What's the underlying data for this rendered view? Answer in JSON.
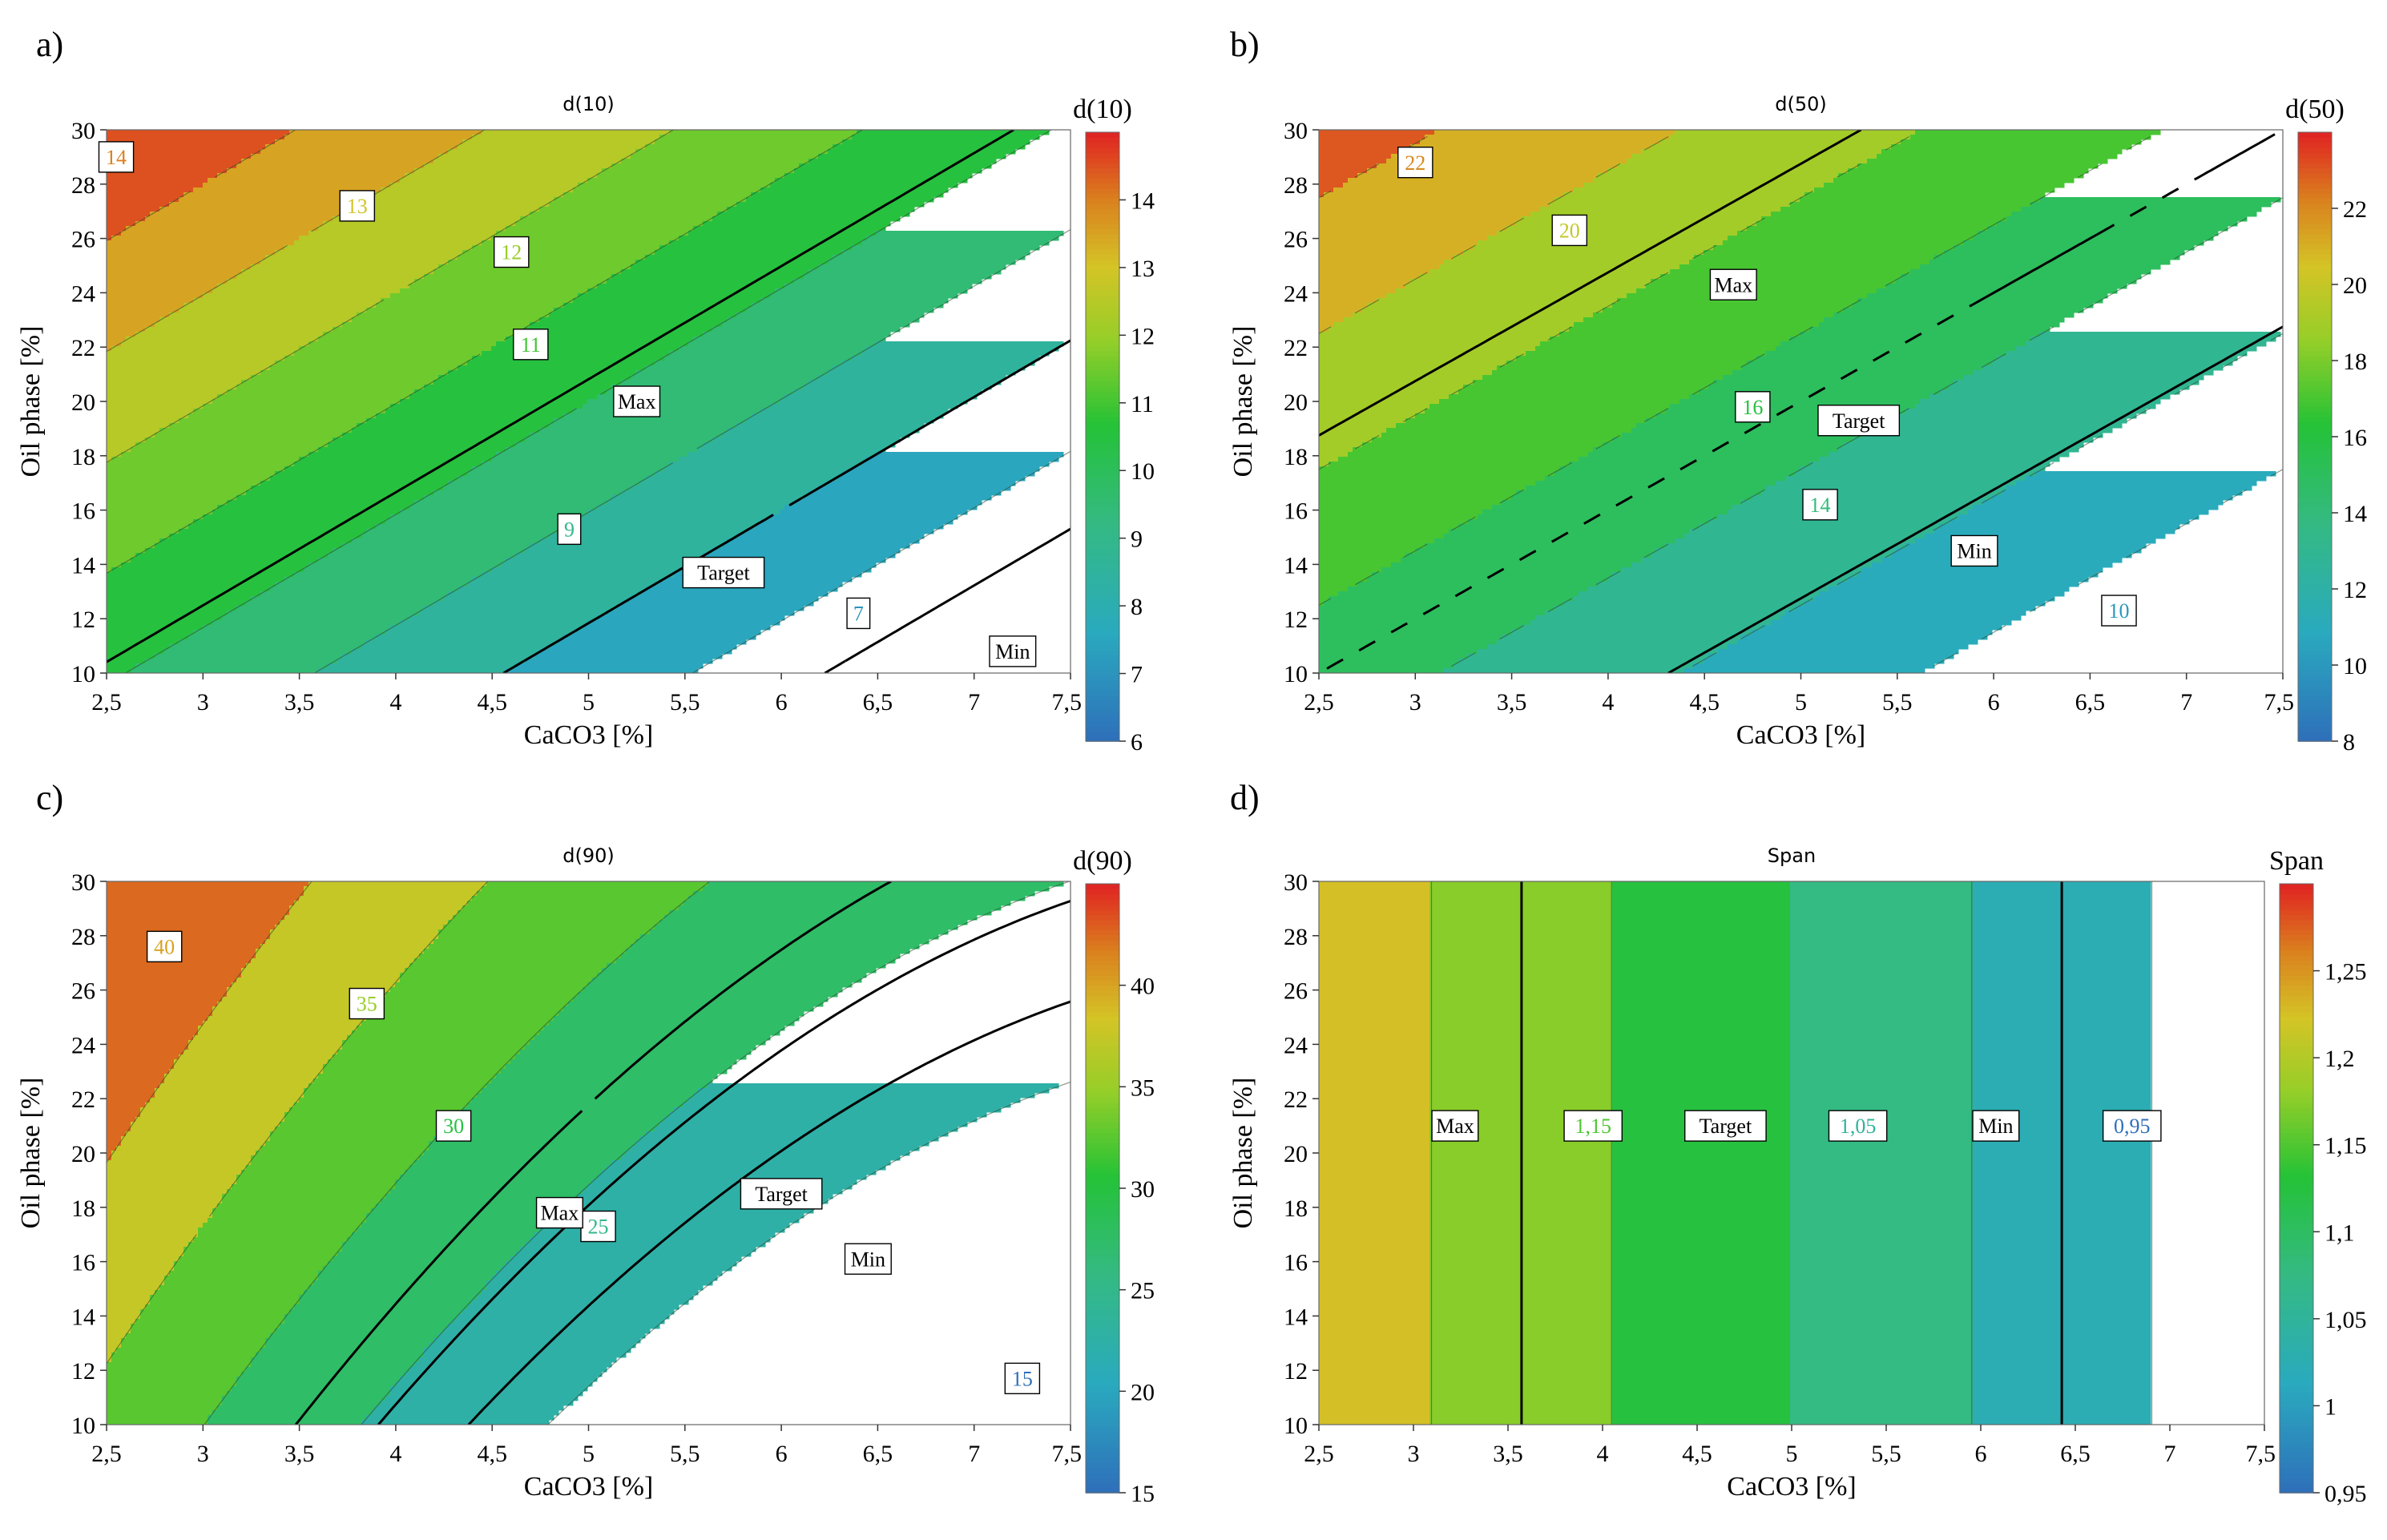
{
  "figure": {
    "panels": [
      {
        "letter": "a)"
      },
      {
        "letter": "b)"
      },
      {
        "letter": "c)"
      },
      {
        "letter": "d)"
      }
    ]
  },
  "chart_data": [
    {
      "type": "contour",
      "title": "d(10)",
      "xlabel": "CaCO3 [%]",
      "ylabel": "Oil phase [%]",
      "xlim": [
        2.5,
        7.5
      ],
      "ylim": [
        10,
        30
      ],
      "x_ticks": [
        "2,5",
        "3",
        "3,5",
        "4",
        "4,5",
        "5",
        "5,5",
        "6",
        "6,5",
        "7",
        "7,5"
      ],
      "y_ticks": [
        "10",
        "12",
        "14",
        "16",
        "18",
        "20",
        "22",
        "24",
        "26",
        "28",
        "30"
      ],
      "colorbar": {
        "title": "d(10)",
        "range": [
          6,
          15
        ],
        "ticks": [
          "6",
          "7",
          "8",
          "9",
          "10",
          "11",
          "12",
          "13",
          "14"
        ]
      },
      "contour_levels": [
        6,
        7,
        8,
        9,
        10,
        11,
        12,
        13,
        14,
        15
      ],
      "contour_labels": [
        {
          "text": "14",
          "x": 2.55,
          "y": 29.0
        },
        {
          "text": "13",
          "x": 3.8,
          "y": 27.2
        },
        {
          "text": "12",
          "x": 4.6,
          "y": 25.5
        },
        {
          "text": "11",
          "x": 4.7,
          "y": 22.1
        },
        {
          "text": "9",
          "x": 4.9,
          "y": 15.3
        },
        {
          "text": "7",
          "x": 6.4,
          "y": 12.2
        }
      ],
      "target_lines": [
        {
          "label": "Max",
          "value": 10.2,
          "label_x": 5.25,
          "label_y": 20.0
        },
        {
          "label": "Target",
          "value": 8.0,
          "label_x": 5.7,
          "label_y": 13.7
        },
        {
          "label": "Min",
          "value": 6.3,
          "label_x": 7.2,
          "label_y": 10.8
        }
      ]
    },
    {
      "type": "contour",
      "title": "d(50)",
      "xlabel": "CaCO3 [%]",
      "ylabel": "Oil phase [%]",
      "xlim": [
        2.5,
        7.5
      ],
      "ylim": [
        10,
        30
      ],
      "x_ticks": [
        "2,5",
        "3",
        "3,5",
        "4",
        "4,5",
        "5",
        "5,5",
        "6",
        "6,5",
        "7",
        "7,5"
      ],
      "y_ticks": [
        "10",
        "12",
        "14",
        "16",
        "18",
        "20",
        "22",
        "24",
        "26",
        "28",
        "30"
      ],
      "colorbar": {
        "title": "d(50)",
        "range": [
          8,
          24
        ],
        "ticks": [
          "8",
          "10",
          "12",
          "14",
          "16",
          "18",
          "20",
          "22"
        ]
      },
      "contour_levels": [
        8,
        10,
        12,
        14,
        16,
        18,
        20,
        22,
        24
      ],
      "contour_labels": [
        {
          "text": "22",
          "x": 3.0,
          "y": 28.8
        },
        {
          "text": "20",
          "x": 3.8,
          "y": 26.3
        },
        {
          "text": "16",
          "x": 4.75,
          "y": 19.8
        },
        {
          "text": "14",
          "x": 5.1,
          "y": 16.2
        },
        {
          "text": "10",
          "x": 6.65,
          "y": 12.3
        }
      ],
      "target_lines": [
        {
          "label": "Max",
          "value": 18.5,
          "label_x": 4.65,
          "label_y": 24.3
        },
        {
          "label": "Target",
          "value": 15.0,
          "label_x": 5.3,
          "label_y": 19.3
        },
        {
          "label": "Min",
          "value": 12.1,
          "label_x": 5.9,
          "label_y": 14.5
        }
      ]
    },
    {
      "type": "contour",
      "title": "d(90)",
      "xlabel": "CaCO3 [%]",
      "ylabel": "Oil phase [%]",
      "xlim": [
        2.5,
        7.5
      ],
      "ylim": [
        10,
        30
      ],
      "x_ticks": [
        "2,5",
        "3",
        "3,5",
        "4",
        "4,5",
        "5",
        "5,5",
        "6",
        "6,5",
        "7",
        "7,5"
      ],
      "y_ticks": [
        "10",
        "12",
        "14",
        "16",
        "18",
        "20",
        "22",
        "24",
        "26",
        "28",
        "30"
      ],
      "colorbar": {
        "title": "d(90)",
        "range": [
          15,
          45
        ],
        "ticks": [
          "15",
          "20",
          "25",
          "30",
          "35",
          "40"
        ]
      },
      "contour_levels": [
        15,
        20,
        25,
        30,
        35,
        40,
        45
      ],
      "contour_labels": [
        {
          "text": "40",
          "x": 2.8,
          "y": 27.6
        },
        {
          "text": "35",
          "x": 3.85,
          "y": 25.5
        },
        {
          "text": "30",
          "x": 4.3,
          "y": 21.0
        },
        {
          "text": "25",
          "x": 5.05,
          "y": 17.3
        },
        {
          "text": "15",
          "x": 7.25,
          "y": 11.7
        }
      ],
      "target_lines": [
        {
          "label": "Max",
          "value": 27.0,
          "label_x": 4.85,
          "label_y": 17.8
        },
        {
          "label": "Target",
          "value": 24.5,
          "label_x": 6.0,
          "label_y": 18.5
        },
        {
          "label": "Min",
          "value": 22.0,
          "label_x": 6.45,
          "label_y": 16.1
        }
      ]
    },
    {
      "type": "contour",
      "title": "Span",
      "xlabel": "CaCO3 [%]",
      "ylabel": "Oil phase [%]",
      "xlim": [
        2.5,
        7.5
      ],
      "ylim": [
        10,
        30
      ],
      "x_ticks": [
        "2,5",
        "3",
        "3,5",
        "4",
        "4,5",
        "5",
        "5,5",
        "6",
        "6,5",
        "7",
        "7,5"
      ],
      "y_ticks": [
        "10",
        "12",
        "14",
        "16",
        "18",
        "20",
        "22",
        "24",
        "26",
        "28",
        "30"
      ],
      "colorbar": {
        "title": "Span",
        "range": [
          0.95,
          1.3
        ],
        "ticks": [
          "0,95",
          "1",
          "1,05",
          "1,1",
          "1,15",
          "1,2",
          "1,25"
        ]
      },
      "contour_levels": [
        0.95,
        1.0,
        1.05,
        1.1,
        1.15,
        1.2,
        1.25,
        1.3
      ],
      "contour_labels": [
        {
          "text": "1,15",
          "x": 3.95,
          "y": 21.0
        },
        {
          "text": "1,05",
          "x": 5.35,
          "y": 21.0
        },
        {
          "text": "0,95",
          "x": 6.8,
          "y": 21.0
        }
      ],
      "target_lines": [
        {
          "label": "Max",
          "value": 1.175,
          "label_x": 3.22,
          "label_y": 21.0
        },
        {
          "label": "Target",
          "value": 1.1,
          "label_x": 4.65,
          "label_y": 21.0
        },
        {
          "label": "Min",
          "value": 1.025,
          "label_x": 6.08,
          "label_y": 21.0
        }
      ]
    }
  ]
}
